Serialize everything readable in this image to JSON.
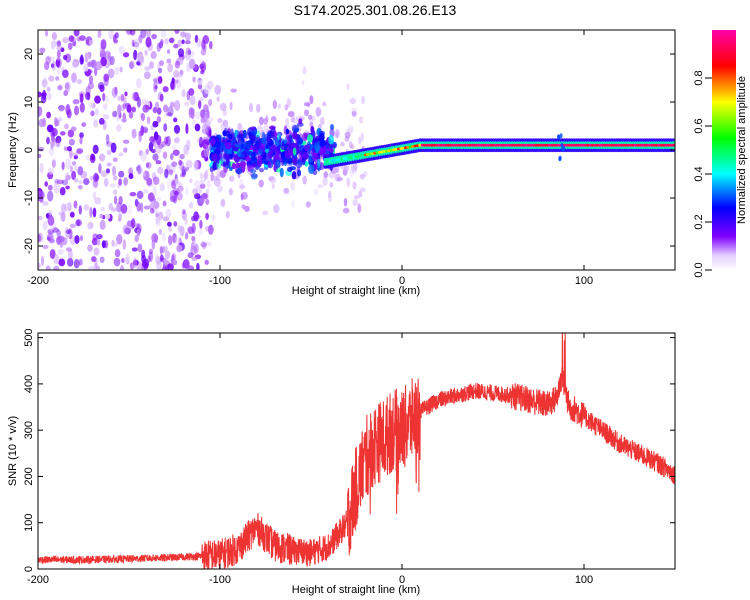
{
  "figure_title": "S174.2025.301.08.26.E13",
  "colors": {
    "snr_line": "#ee3333",
    "axis": "#000000",
    "background": "#ffffff"
  },
  "chart_data": [
    {
      "type": "heatmap",
      "title": "S174.2025.301.08.26.E13",
      "xlabel": "Height of straight line (km)",
      "ylabel": "Frequency (Hz)",
      "xlim": [
        -200,
        150
      ],
      "ylim": [
        -25,
        25
      ],
      "xticks": [
        -200,
        -100,
        0,
        100
      ],
      "xtick_labels": [
        "-200",
        "-100",
        "0",
        "100"
      ],
      "yticks": [
        20,
        10,
        0,
        -10,
        -20
      ],
      "ytick_labels": [
        "20",
        "10",
        "0",
        "-10",
        "-20"
      ],
      "grid": false,
      "colorbar": {
        "label": "Normalized spectral amplitude",
        "range": [
          0,
          1
        ],
        "ticks": [
          0.0,
          0.2,
          0.4,
          0.6,
          0.8
        ],
        "tick_labels": [
          "0.0",
          "0.2",
          "0.4",
          "0.6",
          "0.8"
        ],
        "colormap": "rainbow (violet → blue → cyan → green → yellow → red → magenta)"
      },
      "regions": [
        {
          "x_range": [
            -200,
            -110
          ],
          "freq_range": [
            -25,
            25
          ],
          "amplitude": [
            0.0,
            0.1
          ],
          "description": "diffuse violet noise"
        },
        {
          "x_range": [
            -110,
            -40
          ],
          "freq_range": [
            -10,
            10
          ],
          "amplitude": [
            0.05,
            0.35
          ],
          "description": "dense blue cluster"
        },
        {
          "x_range": [
            -40,
            10
          ],
          "freq_range": [
            -3,
            3
          ],
          "amplitude": [
            0.3,
            0.9
          ],
          "description": "signal rising toward ~1 Hz"
        },
        {
          "x_range": [
            10,
            150
          ],
          "freq_range": [
            0,
            2
          ],
          "amplitude": [
            0.6,
            1.0
          ],
          "description": "steady narrow carrier band at ~1 Hz"
        }
      ]
    },
    {
      "type": "line",
      "title": "",
      "xlabel": "Height of straight line (km)",
      "ylabel": "SNR (10 * v/v)",
      "xlim": [
        -200,
        150
      ],
      "ylim": [
        0,
        510
      ],
      "xticks": [
        -200,
        -100,
        0,
        100
      ],
      "xtick_labels": [
        "-200",
        "-100",
        "0",
        "100"
      ],
      "yticks": [
        0,
        100,
        200,
        300,
        400,
        500
      ],
      "ytick_labels": [
        "0",
        "100",
        "200",
        "300",
        "400",
        "500"
      ],
      "grid": false,
      "series": [
        {
          "name": "SNR",
          "x": [
            -200,
            -175,
            -150,
            -125,
            -110,
            -100,
            -90,
            -80,
            -75,
            -70,
            -60,
            -50,
            -40,
            -30,
            -25,
            -20,
            -15,
            -10,
            -5,
            0,
            10,
            20,
            30,
            40,
            50,
            60,
            70,
            80,
            85,
            88,
            90,
            92,
            95,
            100,
            110,
            120,
            130,
            140,
            150
          ],
          "values": [
            20,
            20,
            22,
            25,
            28,
            30,
            45,
            90,
            70,
            50,
            40,
            35,
            50,
            100,
            180,
            240,
            270,
            280,
            300,
            300,
            340,
            365,
            375,
            385,
            380,
            375,
            365,
            355,
            370,
            420,
            380,
            350,
            345,
            330,
            300,
            270,
            250,
            230,
            205
          ]
        }
      ]
    }
  ]
}
